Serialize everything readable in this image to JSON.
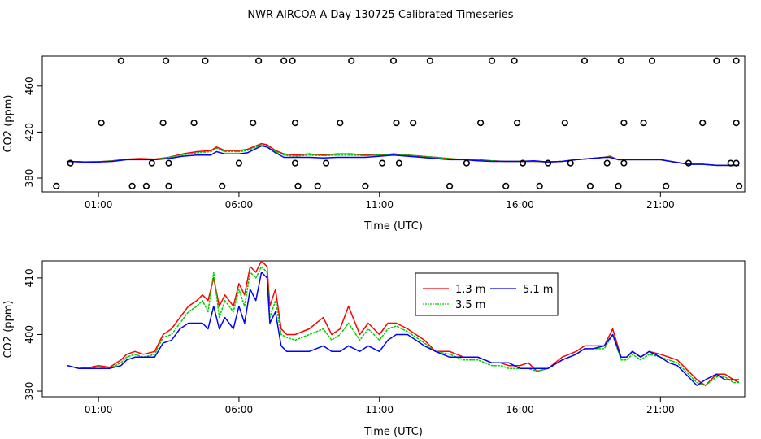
{
  "title": "NWR AIRCOA A  Day 130725  Calibrated Timeseries",
  "colors": {
    "s1": "#ff0000",
    "s2": "#00cc00",
    "s3": "#0000ff",
    "axis": "#000000"
  },
  "chart_data": [
    {
      "type": "line",
      "name": "top-panel",
      "xlabel": "Time (UTC)",
      "ylabel": "CO2 (ppm)",
      "xlim": [
        -1.0,
        24.0
      ],
      "ylim": [
        368,
        486
      ],
      "xticks": [
        1,
        6,
        11,
        16,
        21
      ],
      "xtick_labels": [
        "01:00",
        "06:00",
        "11:00",
        "16:00",
        "21:00"
      ],
      "yticks": [
        380,
        420,
        460
      ],
      "ytick_labels": [
        "380",
        "420",
        "460"
      ],
      "series": [
        {
          "name": "1.3 m",
          "color": "#ff0000",
          "x": [
            -0.1,
            0.5,
            1,
            1.5,
            2,
            2.5,
            3,
            3.5,
            4,
            4.5,
            5,
            5.2,
            5.5,
            6,
            6.3,
            6.8,
            7,
            7.3,
            7.6,
            8,
            8.5,
            9,
            9.5,
            10,
            10.5,
            11,
            11.5,
            12,
            12.5,
            13,
            13.5,
            14,
            14.5,
            15,
            15.5,
            16,
            16.5,
            17,
            17.5,
            18,
            18.5,
            19,
            19.2,
            19.5,
            20,
            20.5,
            21,
            21.5,
            22,
            22.5,
            23,
            23.5,
            23.8
          ],
          "values": [
            394.5,
            394,
            394.2,
            395,
            396.5,
            397,
            396.5,
            398,
            401,
            403,
            404,
            407,
            404,
            404,
            405,
            410,
            409,
            404,
            401,
            400,
            401,
            400,
            401,
            401,
            400,
            400,
            401,
            400,
            399,
            398,
            397,
            396,
            396,
            395,
            394.5,
            394.5,
            394.5,
            394,
            394.5,
            396,
            397,
            398,
            399,
            396,
            396,
            396,
            396,
            394,
            392,
            392,
            391,
            391,
            391
          ]
        },
        {
          "name": "3.5 m",
          "color": "#00cc00",
          "x": [
            -0.1,
            0.5,
            1,
            1.5,
            2,
            2.5,
            3,
            3.5,
            4,
            4.5,
            5,
            5.2,
            5.5,
            6,
            6.3,
            6.8,
            7,
            7.3,
            7.6,
            8,
            8.5,
            9,
            9.5,
            10,
            10.5,
            11,
            11.5,
            12,
            12.5,
            13,
            13.5,
            14,
            14.5,
            15,
            15.5,
            16,
            16.5,
            17,
            17.5,
            18,
            18.5,
            19,
            19.2,
            19.5,
            20,
            20.5,
            21,
            21.5,
            22,
            22.5,
            23,
            23.5,
            23.8
          ],
          "values": [
            394.5,
            394,
            394.2,
            395,
            396,
            396.5,
            396,
            398,
            400,
            402,
            403,
            406,
            403,
            403,
            404,
            409,
            408,
            403,
            400,
            399,
            400,
            399.5,
            400,
            400,
            399.5,
            400,
            400.5,
            400,
            399,
            398,
            397,
            396,
            395.5,
            395,
            394.5,
            394.5,
            394.5,
            394,
            394.5,
            396,
            397,
            398,
            398.5,
            396,
            396,
            396,
            396,
            394,
            392,
            392,
            391,
            391,
            391
          ]
        },
        {
          "name": "5.1 m",
          "color": "#0000ff",
          "x": [
            -0.1,
            0.5,
            1,
            1.5,
            2,
            2.5,
            3,
            3.5,
            4,
            4.5,
            5,
            5.2,
            5.5,
            6,
            6.3,
            6.8,
            7,
            7.3,
            7.6,
            8,
            8.5,
            9,
            9.5,
            10,
            10.5,
            11,
            11.5,
            12,
            12.5,
            13,
            13.5,
            14,
            14.5,
            15,
            15.5,
            16,
            16.5,
            17,
            17.5,
            18,
            18.5,
            19,
            19.2,
            19.5,
            20,
            20.5,
            21,
            21.5,
            22,
            22.5,
            23,
            23.5,
            23.8
          ],
          "values": [
            394.5,
            394,
            394,
            394.5,
            396,
            396,
            396,
            397,
            399,
            400,
            400,
            403,
            401,
            401,
            402,
            408,
            407,
            402,
            398,
            398,
            398,
            397.5,
            398,
            398,
            398,
            399,
            400,
            399,
            398,
            397,
            396,
            396,
            395,
            394.5,
            394.5,
            394.5,
            395,
            394,
            394.5,
            396,
            397,
            398,
            398,
            396,
            396,
            396,
            396,
            394,
            392,
            392,
            391,
            391,
            391
          ]
        }
      ],
      "scatter": {
        "name": "calibration points",
        "x": [
          -0.5,
          0.0,
          1.1,
          1.8,
          2.2,
          2.9,
          2.7,
          3.3,
          3.4,
          3.5,
          3.5,
          4.4,
          4.8,
          5.4,
          6.0,
          6.5,
          6.7,
          7.6,
          7.9,
          8.0,
          8.0,
          8.1,
          8.8,
          9.1,
          9.6,
          10.0,
          10.5,
          11.1,
          11.5,
          11.6,
          11.7,
          12.2,
          12.8,
          13.5,
          14.1,
          14.6,
          15.0,
          15.5,
          15.8,
          15.9,
          16.1,
          16.7,
          17.0,
          17.6,
          17.8,
          18.3,
          18.5,
          19.1,
          19.5,
          19.6,
          19.7,
          19.7,
          20.4,
          20.7,
          21.2,
          22.0,
          22.5,
          23.0,
          23.5,
          23.7,
          23.7,
          23.7,
          23.8
        ],
        "values": [
          373,
          393,
          428,
          482,
          373,
          393,
          373,
          428,
          482,
          393,
          373,
          428,
          482,
          373,
          393,
          428,
          482,
          482,
          482,
          428,
          393,
          373,
          373,
          393,
          428,
          482,
          373,
          393,
          482,
          428,
          393,
          428,
          482,
          373,
          393,
          428,
          482,
          373,
          482,
          428,
          393,
          373,
          393,
          428,
          393,
          482,
          373,
          393,
          373,
          482,
          428,
          393,
          428,
          482,
          373,
          393,
          428,
          482,
          393,
          482,
          428,
          393,
          373
        ]
      }
    },
    {
      "type": "line",
      "name": "bottom-panel",
      "xlabel": "Time (UTC)",
      "ylabel": "CO2 (ppm)",
      "xlim": [
        -1.0,
        24.0
      ],
      "ylim": [
        389,
        413
      ],
      "xticks": [
        1,
        6,
        11,
        16,
        21
      ],
      "xtick_labels": [
        "01:00",
        "06:00",
        "11:00",
        "16:00",
        "21:00"
      ],
      "yticks": [
        390,
        400,
        410
      ],
      "ytick_labels": [
        "390",
        "400",
        "410"
      ],
      "legend": {
        "placement": "top-center",
        "entries": [
          "1.3 m",
          "3.5 m",
          "5.1 m"
        ]
      },
      "series": [
        {
          "name": "1.3 m",
          "color": "#ff0000",
          "x": [
            -0.1,
            0.3,
            0.7,
            1,
            1.4,
            1.8,
            2,
            2.3,
            2.6,
            3,
            3.3,
            3.6,
            3.9,
            4.2,
            4.5,
            4.7,
            4.9,
            5.1,
            5.3,
            5.5,
            5.8,
            6,
            6.2,
            6.4,
            6.6,
            6.8,
            7,
            7.1,
            7.3,
            7.5,
            7.7,
            8,
            8.5,
            9,
            9.3,
            9.6,
            9.9,
            10.3,
            10.6,
            11,
            11.3,
            11.6,
            12,
            12.3,
            12.6,
            13,
            13.5,
            14,
            14.5,
            15,
            15.3,
            15.6,
            16,
            16.3,
            16.6,
            17,
            17.5,
            18,
            18.3,
            18.6,
            19,
            19.3,
            19.6,
            19.8,
            20,
            20.3,
            20.6,
            21,
            21.3,
            21.6,
            22,
            22.3,
            22.6,
            23,
            23.3,
            23.6,
            23.8
          ],
          "values": [
            394.5,
            394,
            394.2,
            394.5,
            394.2,
            395.5,
            396.5,
            397,
            396.5,
            397,
            400,
            401,
            403,
            405,
            406,
            407,
            406,
            410,
            405,
            407,
            405,
            409,
            407,
            412,
            411,
            413,
            412,
            405,
            408,
            401,
            400,
            400,
            401,
            403,
            400,
            401,
            405,
            400,
            402,
            400,
            402,
            402,
            401,
            400,
            399,
            397,
            397,
            396,
            396,
            395,
            395,
            394.5,
            394.5,
            395,
            393.5,
            394,
            396,
            397,
            398,
            398,
            398,
            401,
            396,
            396,
            397,
            396,
            397,
            396.5,
            396,
            395.5,
            393.5,
            392,
            391,
            393,
            393,
            392,
            391.5
          ]
        },
        {
          "name": "3.5 m",
          "color": "#00cc00",
          "x": [
            -0.1,
            0.3,
            0.7,
            1,
            1.4,
            1.8,
            2,
            2.3,
            2.6,
            3,
            3.3,
            3.6,
            3.9,
            4.2,
            4.5,
            4.7,
            4.9,
            5.1,
            5.3,
            5.5,
            5.8,
            6,
            6.2,
            6.4,
            6.6,
            6.8,
            7,
            7.1,
            7.3,
            7.5,
            7.7,
            8,
            8.5,
            9,
            9.3,
            9.6,
            9.9,
            10.3,
            10.6,
            11,
            11.3,
            11.6,
            12,
            12.3,
            12.6,
            13,
            13.5,
            14,
            14.5,
            15,
            15.3,
            15.6,
            16,
            16.3,
            16.6,
            17,
            17.5,
            18,
            18.3,
            18.6,
            19,
            19.3,
            19.6,
            19.8,
            20,
            20.3,
            20.6,
            21,
            21.3,
            21.6,
            22,
            22.3,
            22.6,
            23,
            23.3,
            23.6,
            23.8
          ],
          "values": [
            394.5,
            394,
            394.1,
            394.3,
            394,
            395,
            396,
            396.5,
            396,
            396.5,
            399.5,
            400,
            402,
            404,
            405,
            406,
            404,
            411,
            403,
            406,
            404,
            408,
            405,
            411,
            410,
            412,
            411,
            403,
            406,
            400,
            399.5,
            399,
            400,
            401,
            399,
            400,
            402,
            399,
            401,
            399,
            401,
            401.5,
            400.5,
            399.5,
            398.5,
            397,
            396.5,
            395.5,
            395.5,
            394.5,
            394.5,
            394,
            394,
            394,
            393.5,
            394,
            395.5,
            396.5,
            397.5,
            397.5,
            397.5,
            400,
            395.5,
            395.5,
            396.5,
            395.5,
            396.5,
            396,
            395.5,
            395,
            393,
            391.5,
            391,
            392.5,
            392.5,
            391.5,
            391.5
          ]
        },
        {
          "name": "5.1 m",
          "color": "#0000ff",
          "x": [
            -0.1,
            0.3,
            0.7,
            1,
            1.4,
            1.8,
            2,
            2.3,
            2.6,
            3,
            3.3,
            3.6,
            3.9,
            4.2,
            4.5,
            4.7,
            4.9,
            5.1,
            5.3,
            5.5,
            5.8,
            6,
            6.2,
            6.4,
            6.6,
            6.8,
            7,
            7.1,
            7.3,
            7.5,
            7.7,
            8,
            8.5,
            9,
            9.3,
            9.6,
            9.9,
            10.3,
            10.6,
            11,
            11.3,
            11.6,
            12,
            12.3,
            12.6,
            13,
            13.5,
            14,
            14.5,
            15,
            15.3,
            15.6,
            16,
            16.3,
            16.6,
            17,
            17.5,
            18,
            18.3,
            18.6,
            19,
            19.3,
            19.6,
            19.8,
            20,
            20.3,
            20.6,
            21,
            21.3,
            21.6,
            22,
            22.3,
            22.6,
            23,
            23.3,
            23.6,
            23.8
          ],
          "values": [
            394.5,
            394,
            394,
            394,
            394,
            394.5,
            395.5,
            396,
            396,
            396,
            398.5,
            399,
            401,
            402,
            402,
            402,
            401,
            405,
            401,
            403,
            401,
            405,
            402,
            408,
            406,
            411,
            410,
            402,
            404,
            398,
            397,
            397,
            397,
            398,
            397,
            397,
            398,
            397,
            398,
            397,
            399,
            400,
            400,
            399,
            398,
            397,
            396,
            396,
            396,
            395,
            395,
            395,
            394,
            394,
            394,
            394,
            395.5,
            396.5,
            397.5,
            397.5,
            398,
            400,
            396,
            396,
            397,
            396,
            397,
            396,
            395,
            394.5,
            392.5,
            391,
            392,
            393,
            392,
            392,
            392
          ]
        }
      ]
    }
  ]
}
